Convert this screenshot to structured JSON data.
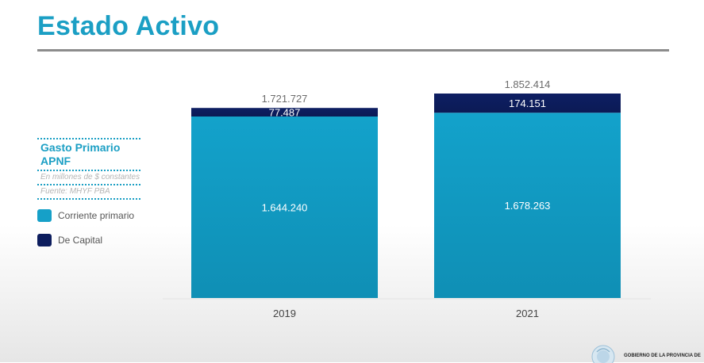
{
  "header": {
    "title": "Estado Activo"
  },
  "side_panel": {
    "title": "Gasto Primario APNF",
    "unit_note": "En millones de $ constantes",
    "source_note": "Fuente: MHYF PBA"
  },
  "legend": {
    "items": [
      {
        "label": "Corriente primario",
        "color": "#16a0c8"
      },
      {
        "label": "De Capital",
        "color": "#0d1d5e"
      }
    ]
  },
  "footer": {
    "org_text": "GOBIERNO DE LA PROVINCIA DE"
  },
  "colors": {
    "accent": "#1b9fc4",
    "corriente": "#16a0c8",
    "capital": "#0d1d5e"
  },
  "chart_data": {
    "type": "bar",
    "stacked": true,
    "categories": [
      "2019",
      "2021"
    ],
    "series": [
      {
        "name": "Corriente primario",
        "values": [
          1644240,
          1678263
        ],
        "labels": [
          "1.644.240",
          "1.678.263"
        ]
      },
      {
        "name": "De Capital",
        "values": [
          77487,
          174151
        ],
        "labels": [
          "77.487",
          "174.151"
        ]
      }
    ],
    "totals": [
      1721727,
      1852414
    ],
    "total_labels": [
      "1.721.727",
      "1.852.414"
    ],
    "legend_position": "left",
    "grid": false
  }
}
